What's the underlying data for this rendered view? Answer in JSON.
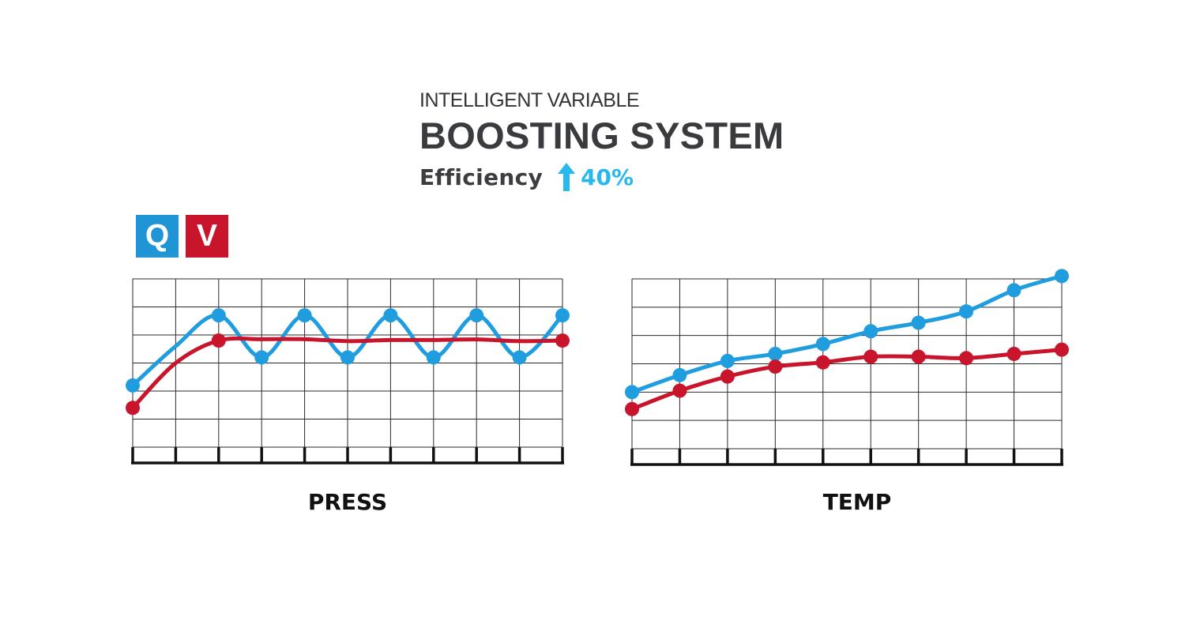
{
  "header": {
    "subtitle": "INTELLIGENT VARIABLE",
    "title": "BOOSTING SYSTEM",
    "efficiency_label": "Efficiency",
    "efficiency_icon": "arrow-up-icon",
    "efficiency_value": "40%"
  },
  "colors": {
    "q": "#1f95d6",
    "v": "#c8152b",
    "q_line": "#1f9ddf",
    "v_line": "#c8152b",
    "accent_value": "#29b8ec",
    "grid": "#2a2a2a",
    "text": "#3a3b3f"
  },
  "legend": [
    {
      "label": "Q",
      "color": "#1f95d6"
    },
    {
      "label": "V",
      "color": "#c8152b"
    }
  ],
  "chart_data": [
    {
      "type": "line",
      "xlabel": "PRESS",
      "x": [
        0,
        1,
        2,
        3,
        4,
        5,
        6,
        7,
        8,
        9,
        10
      ],
      "xlim": [
        0,
        10
      ],
      "ylim": [
        0,
        6
      ],
      "grid": true,
      "series": [
        {
          "name": "Q",
          "color": "#1f9ddf",
          "values": [
            2.2,
            3.6,
            4.7,
            3.2,
            4.7,
            3.2,
            4.7,
            3.2,
            4.7,
            3.2,
            4.7
          ]
        },
        {
          "name": "V",
          "color": "#c8152b",
          "values": [
            1.4,
            3.0,
            3.8,
            3.85,
            3.85,
            3.78,
            3.82,
            3.82,
            3.84,
            3.78,
            3.8
          ]
        }
      ],
      "markers": {
        "Q": [
          0,
          2,
          3,
          4,
          5,
          6,
          7,
          8,
          9,
          10
        ],
        "V": [
          0,
          2,
          10
        ]
      }
    },
    {
      "type": "line",
      "xlabel": "TEMP",
      "x": [
        0,
        1,
        2,
        3,
        4,
        5,
        6,
        7,
        8,
        9
      ],
      "xlim": [
        0,
        9
      ],
      "ylim": [
        0,
        6
      ],
      "grid": true,
      "series": [
        {
          "name": "Q",
          "color": "#1f9ddf",
          "values": [
            2.0,
            2.6,
            3.1,
            3.35,
            3.7,
            4.15,
            4.45,
            4.85,
            5.6,
            6.1
          ]
        },
        {
          "name": "V",
          "color": "#c8152b",
          "values": [
            1.4,
            2.05,
            2.55,
            2.9,
            3.05,
            3.25,
            3.25,
            3.2,
            3.35,
            3.5
          ]
        }
      ],
      "markers": {
        "Q": [
          0,
          1,
          2,
          3,
          4,
          5,
          6,
          7,
          8,
          9
        ],
        "V": [
          0,
          1,
          2,
          3,
          4,
          5,
          6,
          7,
          8,
          9
        ]
      }
    }
  ]
}
